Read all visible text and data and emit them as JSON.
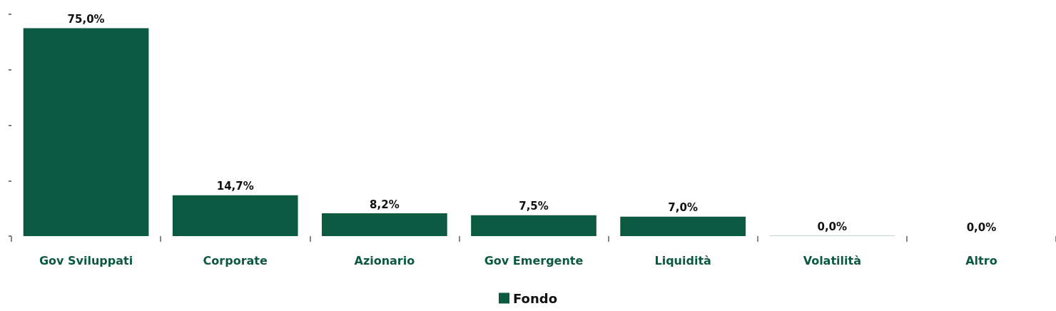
{
  "chart_data": {
    "type": "bar",
    "categories": [
      "Gov Sviluppati",
      "Corporate",
      "Azionario",
      "Gov Emergente",
      "Liquidità",
      "Volatilità",
      "Altro"
    ],
    "series": [
      {
        "name": "Fondo",
        "color": "#0b5940",
        "values": [
          75.0,
          14.7,
          8.2,
          7.5,
          7.0,
          0.04,
          0
        ],
        "value_labels": [
          "75,0%",
          "14,7%",
          "8,2%",
          "7,5%",
          "7,0%",
          "0,0%",
          "0,0%"
        ]
      }
    ],
    "tick_labels": "x",
    "grid": false,
    "legend": "bottom"
  }
}
